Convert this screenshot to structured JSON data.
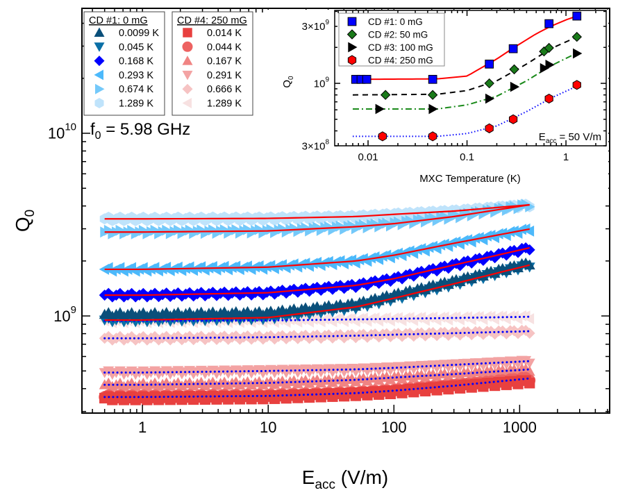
{
  "chart_data": [
    {
      "type": "scatter",
      "xlabel": {
        "main": "E",
        "sub": "acc",
        "rest": " (V/m)"
      },
      "ylabel": {
        "main": "Q",
        "sub": "0"
      },
      "x_scale": "log",
      "y_scale": "log",
      "xlim": [
        0.33,
        5200
      ],
      "ylim": [
        294000000.0,
        48300000000.0
      ],
      "x_ticks": [
        {
          "v": 1,
          "label": "1"
        },
        {
          "v": 10,
          "label": "10"
        },
        {
          "v": 100,
          "label": "100"
        },
        {
          "v": 1000,
          "label": "1000"
        }
      ],
      "y_ticks": [
        {
          "v": 1000000000.0,
          "base": "10",
          "exp": "9"
        },
        {
          "v": 10000000000.0,
          "base": "10",
          "exp": "10"
        }
      ],
      "annotation": {
        "main": "f",
        "sub": "0",
        "rest": " = 5.98 GHz"
      },
      "grid": false,
      "x": [
        0.5,
        1,
        10,
        50,
        100,
        300,
        1200
      ],
      "legends": [
        {
          "title": "CD #1: 0 mG",
          "placement": "top-left"
        },
        {
          "title": "CD #4: 250 mG",
          "placement": "top-left"
        }
      ],
      "series": [
        {
          "group": 0,
          "name": "0.0099 K",
          "marker": "triangle-up",
          "color": "#0a4f7a",
          "values": [
            1020000000.0,
            1020000000.0,
            1040000000.0,
            1160000000.0,
            1300000000.0,
            1550000000.0,
            1950000000.0
          ],
          "fit": null
        },
        {
          "group": 0,
          "name": "0.045 K",
          "marker": "triangle-down",
          "color": "#0a6fa6",
          "values": [
            950000000.0,
            950000000.0,
            980000000.0,
            1120000000.0,
            1250000000.0,
            1500000000.0,
            1900000000.0
          ],
          "fit": "solid-red"
        },
        {
          "group": 0,
          "name": "0.168 K",
          "marker": "diamond",
          "color": "#0000ff",
          "values": [
            1300000000.0,
            1300000000.0,
            1340000000.0,
            1470000000.0,
            1600000000.0,
            1900000000.0,
            2360000000.0
          ],
          "fit": "solid-red"
        },
        {
          "group": 0,
          "name": "0.293 K",
          "marker": "triangle-left",
          "color": "#4cb9fb",
          "values": [
            1800000000.0,
            1800000000.0,
            1850000000.0,
            2000000000.0,
            2150000000.0,
            2500000000.0,
            2990000000.0
          ],
          "fit": "solid-red"
        },
        {
          "group": 0,
          "name": "0.674 K",
          "marker": "triangle-right",
          "color": "#74c9fa",
          "values": [
            2880000000.0,
            2880000000.0,
            2920000000.0,
            3080000000.0,
            3200000000.0,
            3500000000.0,
            4060000000.0
          ],
          "fit": "solid-red"
        },
        {
          "group": 0,
          "name": "1.289 K",
          "marker": "hexagon",
          "color": "#bfe3fb",
          "values": [
            3400000000.0,
            3400000000.0,
            3420000000.0,
            3500000000.0,
            3600000000.0,
            3750000000.0,
            4060000000.0
          ],
          "fit": "solid-red"
        },
        {
          "group": 1,
          "name": "0.014 K",
          "marker": "square",
          "color": "#e8403f",
          "values": [
            355000000.0,
            355000000.0,
            360000000.0,
            375000000.0,
            385000000.0,
            410000000.0,
            440000000.0
          ],
          "fit": null
        },
        {
          "group": 1,
          "name": "0.044 K",
          "marker": "circle",
          "color": "#ed6261",
          "values": [
            360000000.0,
            360000000.0,
            365000000.0,
            378000000.0,
            390000000.0,
            415000000.0,
            455000000.0
          ],
          "fit": "dotted-blue"
        },
        {
          "group": 1,
          "name": "0.167 K",
          "marker": "triangle-up",
          "color": "#f08483",
          "values": [
            420000000.0,
            420000000.0,
            430000000.0,
            447000000.0,
            460000000.0,
            480000000.0,
            510000000.0
          ],
          "fit": "dotted-blue"
        },
        {
          "group": 1,
          "name": "0.291 K",
          "marker": "triangle-down",
          "color": "#f3a3a3",
          "values": [
            490000000.0,
            490000000.0,
            500000000.0,
            510000000.0,
            520000000.0,
            540000000.0,
            566000000.0
          ],
          "fit": "dotted-blue"
        },
        {
          "group": 1,
          "name": "0.666 K",
          "marker": "diamond",
          "color": "#f6c3c3",
          "values": [
            755000000.0,
            755000000.0,
            765000000.0,
            780000000.0,
            790000000.0,
            805000000.0,
            825000000.0
          ],
          "fit": "dotted-blue"
        },
        {
          "group": 1,
          "name": "1.289 K",
          "marker": "triangle-left",
          "color": "#f7e1e1",
          "values": [
            940000000.0,
            940000000.0,
            945000000.0,
            957000000.0,
            965000000.0,
            975000000.0,
            990000000.0
          ],
          "fit": "dotted-blue"
        }
      ]
    },
    {
      "type": "scatter",
      "inset": true,
      "xlabel": "MXC Temperature (K)",
      "ylabel": {
        "main": "Q",
        "sub": "0"
      },
      "x_scale": "log",
      "y_scale": "log",
      "xlim": [
        0.0046,
        2.55
      ],
      "ylim": [
        300000000.0,
        4080000000.0
      ],
      "x_ticks": [
        {
          "v": 0.01,
          "label": "0.01"
        },
        {
          "v": 0.1,
          "label": "0.1"
        },
        {
          "v": 1,
          "label": "1"
        }
      ],
      "y_ticks": [
        {
          "v": 300000000.0,
          "base": "3×10",
          "exp": "8"
        },
        {
          "v": 1000000000.0,
          "base": "10",
          "exp": "9"
        },
        {
          "v": 3000000000.0,
          "base": "3×10",
          "exp": "9"
        }
      ],
      "annotation": {
        "main": "E",
        "sub": "acc",
        "rest": " = 50 V/m"
      },
      "legend_placement": "top-left",
      "grid": false,
      "series": [
        {
          "name": "CD #1: 0 mG",
          "marker": "square",
          "color": "#0000ff",
          "x": [
            0.0075,
            0.0085,
            0.0097,
            0.045,
            0.168,
            0.293,
            0.674,
            1.289
          ],
          "y": [
            1080000000.0,
            1080000000.0,
            1080000000.0,
            1080000000.0,
            1450000000.0,
            1950000000.0,
            3160000000.0,
            3660000000.0
          ],
          "fit_style": "solid",
          "fit_color": "#ff0000",
          "fit_x": [
            0.007,
            0.05,
            0.1,
            0.2,
            0.3,
            0.5,
            0.7,
            1.0,
            1.4
          ],
          "fit_y": [
            1080000000.0,
            1090000000.0,
            1150000000.0,
            1600000000.0,
            2000000000.0,
            2600000000.0,
            3000000000.0,
            3400000000.0,
            3750000000.0
          ]
        },
        {
          "name": "CD #2: 50 mG",
          "marker": "diamond",
          "color": "#1a7a1a",
          "x": [
            0.015,
            0.045,
            0.168,
            0.3,
            0.6,
            0.674,
            1.289
          ],
          "y": [
            800000000.0,
            800000000.0,
            1000000000.0,
            1310000000.0,
            1850000000.0,
            1980000000.0,
            2450000000.0
          ],
          "fit_style": "dashed",
          "fit_color": "#000000",
          "fit_x": [
            0.007,
            0.05,
            0.1,
            0.2,
            0.4,
            0.7,
            1.3
          ],
          "fit_y": [
            800000000.0,
            810000000.0,
            870000000.0,
            1050000000.0,
            1450000000.0,
            1950000000.0,
            2450000000.0
          ]
        },
        {
          "name": "CD #3: 100 mG",
          "marker": "triangle-right",
          "color": "#000000",
          "x": [
            0.013,
            0.045,
            0.168,
            0.3,
            0.6,
            0.68,
            1.289
          ],
          "y": [
            610000000.0,
            610000000.0,
            745000000.0,
            935000000.0,
            1340000000.0,
            1430000000.0,
            1780000000.0
          ],
          "fit_style": "dash-dot",
          "fit_color": "#1a8a1a",
          "fit_x": [
            0.007,
            0.05,
            0.1,
            0.2,
            0.4,
            0.7,
            1.3
          ],
          "fit_y": [
            610000000.0,
            610000000.0,
            660000000.0,
            780000000.0,
            1050000000.0,
            1400000000.0,
            1800000000.0
          ]
        },
        {
          "name": "CD #4: 250 mG",
          "marker": "hexagon",
          "color": "#ff0000",
          "x": [
            0.014,
            0.045,
            0.168,
            0.293,
            0.674,
            1.289
          ],
          "y": [
            360000000.0,
            360000000.0,
            420000000.0,
            500000000.0,
            745000000.0,
            970000000.0
          ],
          "fit_style": "dotted",
          "fit_color": "#0000ff",
          "fit_x": [
            0.007,
            0.05,
            0.1,
            0.2,
            0.4,
            0.7,
            1.3
          ],
          "fit_y": [
            360000000.0,
            360000000.0,
            380000000.0,
            440000000.0,
            580000000.0,
            750000000.0,
            950000000.0
          ]
        }
      ]
    }
  ]
}
